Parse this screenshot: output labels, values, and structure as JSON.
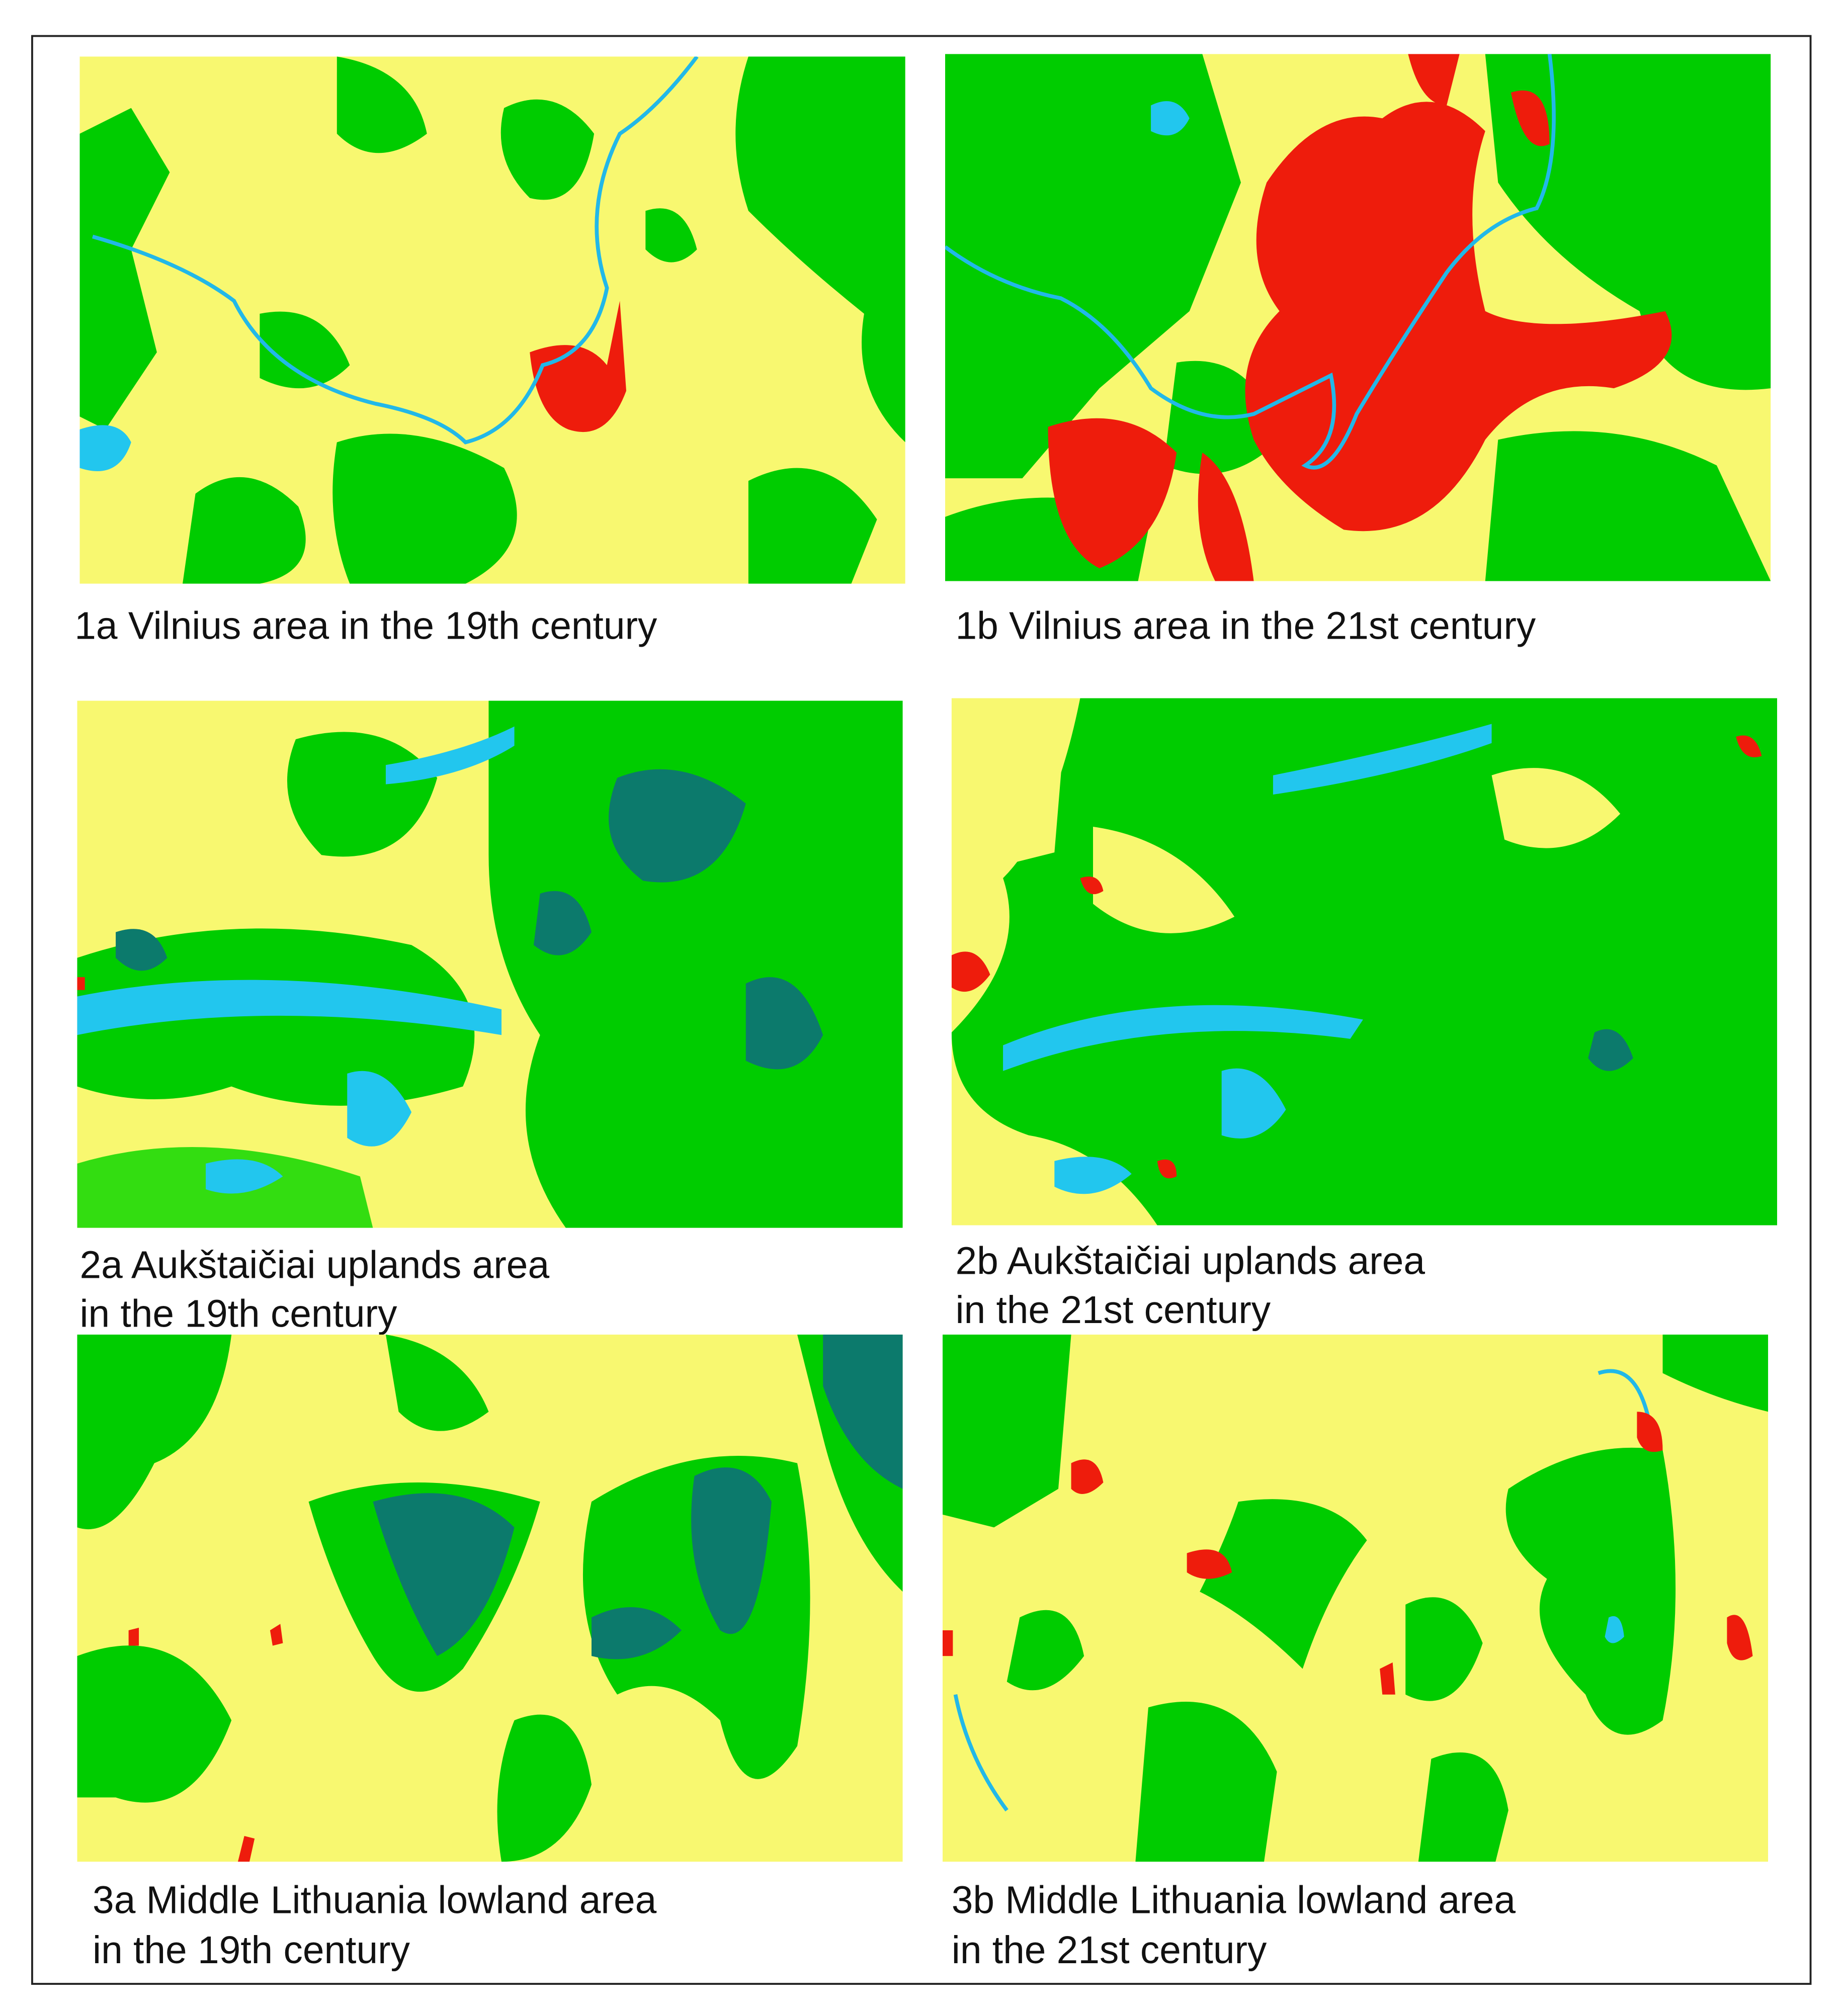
{
  "panels": [
    {
      "caption": [
        "1a Vilnius area in the 19th century"
      ]
    },
    {
      "caption": [
        "1b Vilnius area in the 21st century"
      ]
    },
    {
      "caption": [
        "2a Aukštaičiai uplands area",
        "in the 19th century"
      ]
    },
    {
      "caption": [
        "2b Aukštaičiai uplands area",
        "in the 21st century"
      ]
    },
    {
      "caption": [
        "3a Middle Lithuania lowland area",
        "in the 19th century"
      ]
    },
    {
      "caption": [
        "3b Middle Lithuania lowland area",
        "in the 21st century"
      ]
    }
  ]
}
